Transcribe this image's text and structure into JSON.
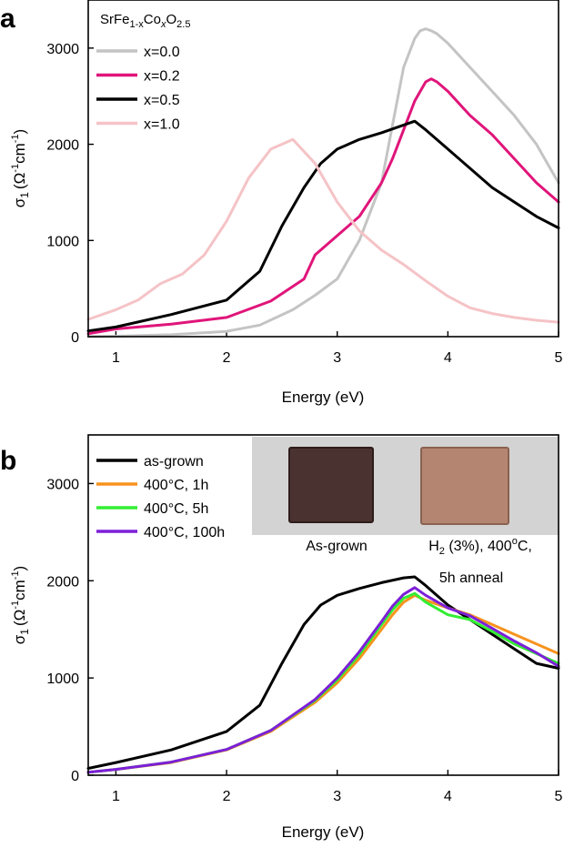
{
  "chart_data": [
    {
      "panel_label": "a",
      "type": "line",
      "xlabel": "Energy (eV)",
      "ylabel": {
        "main": "σ",
        "sub": "1",
        "unit": "(Ω",
        "sup1": "-1",
        "unit2": "cm",
        "sup2": "-1",
        "close": ")"
      },
      "xlim": [
        0.75,
        5.0
      ],
      "ylim": [
        0,
        3500
      ],
      "xticks": [
        "1",
        "2",
        "3",
        "4",
        "5"
      ],
      "xtick_values": [
        1,
        2,
        3,
        4,
        5
      ],
      "yticks": [
        "0",
        "1000",
        "2000",
        "3000"
      ],
      "ytick_values": [
        0,
        1000,
        2000,
        3000
      ],
      "legend_title": {
        "base": "SrFe",
        "sub1": "1-x",
        "mid": "Co",
        "sub2": "x",
        "tail": "O",
        "sub3": "2.5"
      },
      "legend_position": "top-left",
      "series": [
        {
          "name": "x=0.0",
          "color": "#c4c4c4",
          "x": [
            0.75,
            1.0,
            1.5,
            2.0,
            2.3,
            2.6,
            2.8,
            3.0,
            3.2,
            3.4,
            3.5,
            3.6,
            3.7,
            3.75,
            3.8,
            3.85,
            3.9,
            4.0,
            4.2,
            4.4,
            4.6,
            4.8,
            4.9,
            5.0
          ],
          "y": [
            0,
            5,
            20,
            55,
            120,
            280,
            430,
            600,
            1000,
            1600,
            2200,
            2800,
            3100,
            3180,
            3200,
            3180,
            3150,
            3050,
            2800,
            2550,
            2300,
            2000,
            1800,
            1600
          ]
        },
        {
          "name": "x=0.2",
          "color": "#e0157a",
          "x": [
            0.75,
            1.0,
            1.5,
            2.0,
            2.4,
            2.7,
            2.8,
            3.0,
            3.2,
            3.4,
            3.5,
            3.6,
            3.7,
            3.8,
            3.85,
            3.9,
            4.0,
            4.2,
            4.4,
            4.6,
            4.8,
            5.0
          ],
          "y": [
            30,
            80,
            130,
            200,
            370,
            600,
            850,
            1050,
            1250,
            1600,
            1850,
            2150,
            2450,
            2650,
            2680,
            2650,
            2550,
            2300,
            2100,
            1850,
            1600,
            1400
          ]
        },
        {
          "name": "x=0.5",
          "color": "#000000",
          "x": [
            0.75,
            1.0,
            1.5,
            2.0,
            2.3,
            2.5,
            2.7,
            2.85,
            3.0,
            3.2,
            3.4,
            3.6,
            3.7,
            3.8,
            4.0,
            4.2,
            4.4,
            4.6,
            4.8,
            5.0
          ],
          "y": [
            60,
            100,
            230,
            380,
            680,
            1150,
            1550,
            1800,
            1950,
            2050,
            2120,
            2200,
            2240,
            2150,
            1950,
            1750,
            1550,
            1400,
            1250,
            1130
          ]
        },
        {
          "name": "x=1.0",
          "color": "#f5c3c6",
          "x": [
            0.75,
            1.0,
            1.2,
            1.4,
            1.6,
            1.8,
            2.0,
            2.2,
            2.4,
            2.6,
            2.8,
            3.0,
            3.2,
            3.4,
            3.6,
            3.8,
            4.0,
            4.2,
            4.4,
            4.6,
            4.8,
            5.0
          ],
          "y": [
            180,
            280,
            380,
            550,
            650,
            850,
            1200,
            1650,
            1950,
            2050,
            1800,
            1400,
            1100,
            900,
            750,
            580,
            420,
            300,
            240,
            200,
            170,
            150
          ]
        }
      ]
    },
    {
      "panel_label": "b",
      "type": "line",
      "xlabel": "Energy (eV)",
      "ylabel": {
        "main": "σ",
        "sub": "1",
        "unit": "(Ω",
        "sup1": "-1",
        "unit2": "cm",
        "sup2": "-1",
        "close": ")"
      },
      "xlim": [
        0.75,
        5.0
      ],
      "ylim": [
        0,
        3500
      ],
      "xticks": [
        "1",
        "2",
        "3",
        "4",
        "5"
      ],
      "xtick_values": [
        1,
        2,
        3,
        4,
        5
      ],
      "yticks": [
        "0",
        "1000",
        "2000",
        "3000"
      ],
      "ytick_values": [
        0,
        1000,
        2000,
        3000
      ],
      "legend_position": "top-left",
      "series": [
        {
          "name": "as-grown",
          "color": "#000000",
          "x": [
            0.75,
            1.0,
            1.5,
            2.0,
            2.3,
            2.5,
            2.7,
            2.85,
            3.0,
            3.2,
            3.4,
            3.6,
            3.7,
            3.8,
            4.0,
            4.2,
            4.4,
            4.6,
            4.8,
            5.0
          ],
          "y": [
            70,
            130,
            260,
            450,
            720,
            1150,
            1550,
            1750,
            1850,
            1920,
            1980,
            2030,
            2040,
            1950,
            1750,
            1600,
            1450,
            1300,
            1150,
            1100
          ]
        },
        {
          "name": "400°C, 1h",
          "color": "#f7931e",
          "x": [
            0.75,
            1.0,
            1.5,
            2.0,
            2.4,
            2.8,
            3.0,
            3.2,
            3.4,
            3.5,
            3.6,
            3.7,
            3.8,
            4.0,
            4.2,
            4.4,
            4.6,
            4.8,
            5.0
          ],
          "y": [
            30,
            60,
            130,
            260,
            450,
            750,
            950,
            1200,
            1500,
            1650,
            1780,
            1850,
            1800,
            1720,
            1650,
            1550,
            1450,
            1350,
            1250
          ]
        },
        {
          "name": "400°C, 5h",
          "color": "#33ee33",
          "x": [
            0.75,
            1.0,
            1.5,
            2.0,
            2.4,
            2.8,
            3.0,
            3.2,
            3.4,
            3.5,
            3.6,
            3.7,
            3.8,
            4.0,
            4.2,
            4.4,
            4.6,
            4.8,
            5.0
          ],
          "y": [
            30,
            60,
            135,
            265,
            460,
            770,
            980,
            1240,
            1550,
            1700,
            1820,
            1870,
            1780,
            1650,
            1600,
            1480,
            1350,
            1250,
            1150
          ]
        },
        {
          "name": "400°C, 100h",
          "color": "#7d1fd8",
          "x": [
            0.75,
            1.0,
            1.5,
            2.0,
            2.4,
            2.8,
            3.0,
            3.2,
            3.4,
            3.5,
            3.6,
            3.7,
            3.8,
            4.0,
            4.2,
            4.4,
            4.6,
            4.8,
            5.0
          ],
          "y": [
            30,
            60,
            135,
            265,
            460,
            780,
            1000,
            1270,
            1580,
            1740,
            1860,
            1930,
            1850,
            1720,
            1640,
            1510,
            1380,
            1260,
            1120
          ]
        }
      ]
    }
  ],
  "photo_inset": {
    "bg_color": "#d3d3d3",
    "samples": [
      {
        "label": "As-grown",
        "color": "#4a3230",
        "edge_color": "#2e1c1a"
      },
      {
        "label_line1_pre": "H",
        "label_line1_sub": "2",
        "label_line1_mid": " (3%), 400",
        "label_line1_sup": "o",
        "label_line1_post": "C,",
        "label_line2": "5h anneal",
        "color": "#b48672",
        "edge_color": "#8a6250"
      }
    ]
  }
}
